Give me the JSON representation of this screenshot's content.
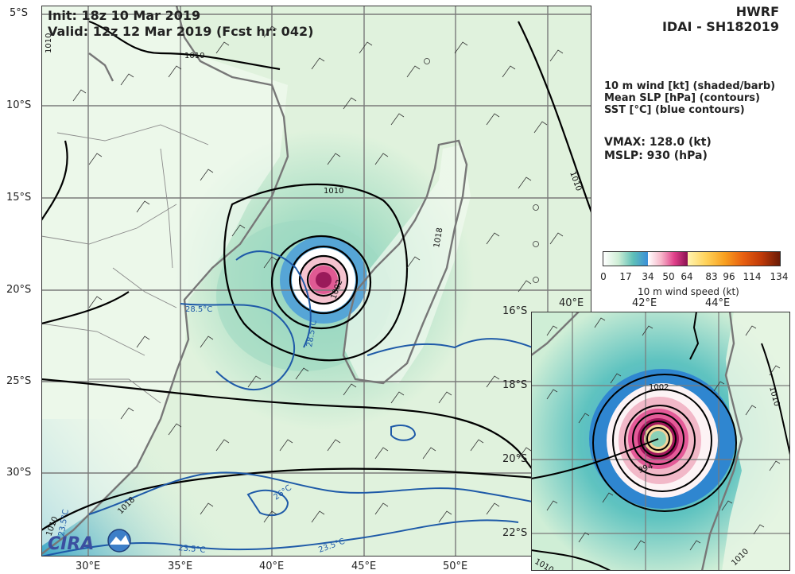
{
  "header": {
    "init": "Init: 18z 10 Mar 2019",
    "valid": "Valid: 12z 12 Mar 2019 (Fcst hr: 042)"
  },
  "model": {
    "name": "HWRF",
    "storm": "IDAI - SH182019"
  },
  "legend": {
    "line1": "10 m wind [kt] (shaded/barb)",
    "line2": "Mean SLP [hPa] (contours)",
    "line3": "SST [°C] (blue contours)"
  },
  "stats": {
    "vmax": "VMAX: 128.0 (kt)",
    "mslp": "MSLP:  930 (hPa)"
  },
  "colorbar": {
    "label": "10 m wind speed (kt)",
    "ticks": [
      "0",
      "17",
      "34",
      "50",
      "64",
      "83",
      "96",
      "114",
      "134"
    ],
    "colors": [
      "#ffffff",
      "#cfeed6",
      "#5fc0b8",
      "#3a8fd8",
      "#ffffff",
      "#f7b6c9",
      "#e0408a",
      "#8a1050",
      "#fff4b0",
      "#ffd25a",
      "#f8a020",
      "#e86010",
      "#c03a08",
      "#6a1a06"
    ]
  },
  "main_map": {
    "lat_labels": [
      "5°S",
      "10°S",
      "15°S",
      "20°S",
      "25°S",
      "30°S"
    ],
    "lon_labels": [
      "30°E",
      "35°E",
      "40°E",
      "45°E",
      "50°E"
    ],
    "contour_labels": [
      "1010",
      "1010",
      "1010",
      "1010",
      "1002",
      "1018",
      "1018",
      "1010"
    ],
    "sst_labels": [
      "28.5°C",
      "28.5°C",
      "26°C",
      "23.5°C",
      "23.5°C",
      "23.5°C"
    ],
    "logo_text": "CIRA"
  },
  "inset_map": {
    "lat_labels": [
      "16°S",
      "18°S",
      "20°S",
      "22°S"
    ],
    "lon_labels": [
      "40°E",
      "42°E",
      "44°E"
    ],
    "contour_labels": [
      "1002",
      "994",
      "1010",
      "1010",
      "1010"
    ]
  },
  "colors": {
    "grid": "#7a7a7a",
    "coast": "#777777",
    "slp_contour": "#000000",
    "sst_contour": "#1e5aa8"
  }
}
